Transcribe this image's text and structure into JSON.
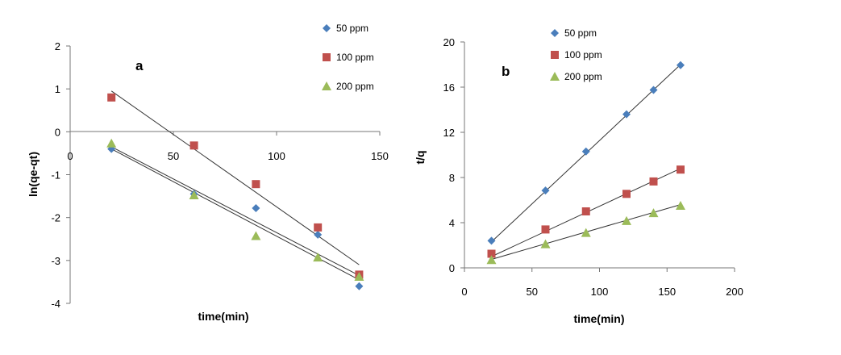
{
  "chart_data": [
    {
      "panel": "a",
      "type": "scatter",
      "xlabel": "time(min)",
      "ylabel": "ln(qe-qt)",
      "xlim": [
        0,
        150
      ],
      "ylim": [
        -4,
        2
      ],
      "xticks": [
        0,
        50,
        100,
        150
      ],
      "yticks": [
        -4,
        -3,
        -2,
        -1,
        0,
        1,
        2
      ],
      "grid": false,
      "legend_position": "top-right",
      "series": [
        {
          "name": "50 ppm",
          "marker": "diamond",
          "color": "#4a7ebb",
          "x": [
            20,
            60,
            90,
            120,
            140
          ],
          "y": [
            -0.4,
            -1.45,
            -1.78,
            -2.4,
            -3.6
          ],
          "fit": {
            "x": [
              20,
              140
            ],
            "y": [
              -0.35,
              -3.35
            ]
          }
        },
        {
          "name": "100 ppm",
          "marker": "square",
          "color": "#c0504d",
          "x": [
            20,
            60,
            90,
            120,
            140
          ],
          "y": [
            0.8,
            -0.32,
            -1.22,
            -2.23,
            -3.33
          ],
          "fit": {
            "x": [
              20,
              140
            ],
            "y": [
              0.95,
              -3.1
            ]
          }
        },
        {
          "name": "200 ppm",
          "marker": "triangle",
          "color": "#9bbb59",
          "x": [
            20,
            60,
            90,
            120,
            140
          ],
          "y": [
            -0.27,
            -1.48,
            -2.43,
            -2.93,
            -3.38
          ],
          "fit": {
            "x": [
              20,
              140
            ],
            "y": [
              -0.4,
              -3.45
            ]
          }
        }
      ]
    },
    {
      "panel": "b",
      "type": "scatter",
      "xlabel": "time(min)",
      "ylabel": "t/q",
      "xlim": [
        0,
        200
      ],
      "ylim": [
        0,
        20
      ],
      "xticks": [
        0,
        50,
        100,
        150,
        200
      ],
      "yticks": [
        0,
        4,
        8,
        12,
        16,
        20
      ],
      "grid": false,
      "legend_position": "top-left",
      "series": [
        {
          "name": "50 ppm",
          "marker": "diamond",
          "color": "#4a7ebb",
          "x": [
            20,
            60,
            90,
            120,
            140,
            160
          ],
          "y": [
            2.4,
            6.85,
            10.3,
            13.6,
            15.75,
            17.95
          ],
          "fit": {
            "x": [
              20,
              160
            ],
            "y": [
              2.3,
              18.0
            ]
          }
        },
        {
          "name": "100 ppm",
          "marker": "square",
          "color": "#c0504d",
          "x": [
            20,
            60,
            90,
            120,
            140,
            160
          ],
          "y": [
            1.25,
            3.4,
            5.0,
            6.55,
            7.65,
            8.7
          ],
          "fit": {
            "x": [
              20,
              160
            ],
            "y": [
              1.0,
              8.8
            ]
          }
        },
        {
          "name": "200 ppm",
          "marker": "triangle",
          "color": "#9bbb59",
          "x": [
            20,
            60,
            90,
            120,
            140,
            160
          ],
          "y": [
            0.7,
            2.1,
            3.1,
            4.15,
            4.85,
            5.5
          ],
          "fit": {
            "x": [
              20,
              160
            ],
            "y": [
              0.75,
              5.6
            ]
          }
        }
      ]
    }
  ]
}
